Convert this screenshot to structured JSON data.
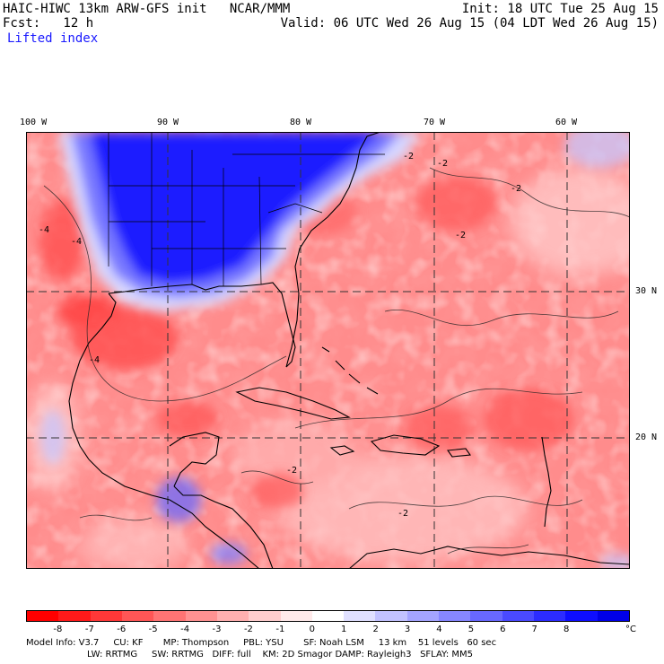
{
  "header": {
    "model_title": "HAIC-HIWC 13km ARW-GFS init   NCAR/MMM",
    "init": "Init: 18 UTC Tue 25 Aug 15",
    "forecast": "Fcst:   12 h",
    "valid": "Valid: 06 UTC Wed 26 Aug 15 (04 LDT Wed 26 Aug 15)",
    "field": "Lifted index"
  },
  "map": {
    "lon_labels": [
      "100 W",
      "90 W",
      "80 W",
      "70 W",
      "60 W"
    ],
    "lat_labels": [
      "30 N",
      "20 N"
    ],
    "contour_labels": [
      "-4",
      "-4",
      "-4",
      "-2",
      "-2",
      "-2",
      "-2",
      "-2",
      "-2"
    ]
  },
  "colorbar": {
    "ticks": [
      "-8",
      "-7",
      "-6",
      "-5",
      "-4",
      "-3",
      "-2",
      "-1",
      "0",
      "1",
      "2",
      "3",
      "4",
      "5",
      "6",
      "7",
      "8"
    ],
    "unit": "°C",
    "colors": [
      "#ff0000",
      "#ff1a1a",
      "#ff3838",
      "#ff5656",
      "#ff7474",
      "#ff9292",
      "#ffb0b0",
      "#ffcece",
      "#ffeaea",
      "#ffffff",
      "#e0e0ff",
      "#c2c2ff",
      "#a4a4ff",
      "#8686ff",
      "#6868ff",
      "#4a4aff",
      "#2c2cff",
      "#0e0eff",
      "#0000e8"
    ]
  },
  "footer": {
    "line1": "Model Info: V3.7     CU: KF       MP: Thompson     PBL: YSU       SF: Noah LSM     13 km    51 levels   60 sec",
    "line2": "LW: RRTMG     SW: RRTMG   DIFF: full    KM: 2D Smagor DAMP: Rayleigh3   SFLAY: MM5"
  }
}
